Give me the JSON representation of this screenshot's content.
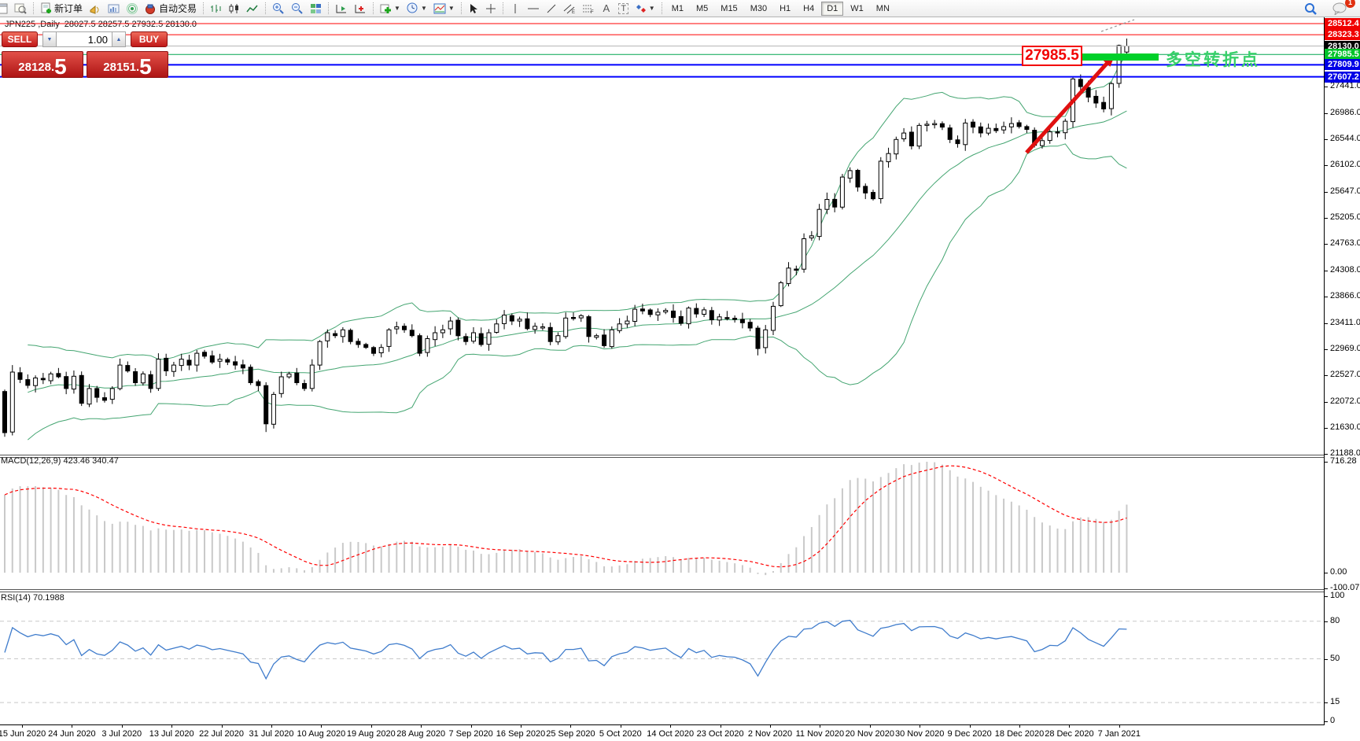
{
  "toolbar": {
    "new_order": "新订单",
    "auto_trading": "自动交易",
    "timeframes": [
      "M1",
      "M5",
      "M15",
      "M30",
      "H1",
      "H4",
      "D1",
      "W1",
      "MN"
    ],
    "active_timeframe": "D1",
    "badge": "1"
  },
  "chart": {
    "title": "JPN225 ,Daily  28027.5 28257.5 27932.5 28130.0",
    "symbol": "JPN225",
    "period": "Daily"
  },
  "trade_panel": {
    "sell_label": "SELL",
    "buy_label": "BUY",
    "volume": "1.00",
    "bid_main": "28128.",
    "bid_big": "5",
    "ask_main": "28151.",
    "ask_big": "5"
  },
  "annotations": {
    "level_label": "27985.5",
    "note": "多空转折点"
  },
  "indicators": {
    "macd_label": "MACD(12,26,9) 423.46 340.47",
    "rsi_label": "RSI(14) 70.1988",
    "macd_scale": [
      "716.28",
      "0.00",
      "-100.07"
    ],
    "rsi_scale": [
      "100",
      "80",
      "50",
      "15",
      "0"
    ]
  },
  "chart_data": {
    "type": "candlestick-ohlc",
    "symbol": "JPN225",
    "timeframe": "Daily",
    "open_first": 22250,
    "closes": [
      21550,
      22580,
      22455,
      22355,
      22480,
      22450,
      22550,
      22500,
      22300,
      22510,
      22050,
      22300,
      22150,
      22100,
      22300,
      22700,
      22600,
      22400,
      22550,
      22300,
      22800,
      22600,
      22700,
      22800,
      22700,
      22900,
      22850,
      22750,
      22800,
      22750,
      22700,
      22650,
      22400,
      22350,
      21700,
      22200,
      22500,
      22550,
      22400,
      22300,
      22700,
      23100,
      23250,
      23200,
      23300,
      23100,
      23050,
      23000,
      22900,
      23000,
      23300,
      23350,
      23300,
      23200,
      22900,
      23150,
      23250,
      23300,
      23450,
      23200,
      23100,
      23250,
      23050,
      23250,
      23400,
      23550,
      23450,
      23480,
      23320,
      23360,
      23350,
      23100,
      23200,
      23500,
      23500,
      23540,
      23185,
      23200,
      23030,
      23300,
      23400,
      23450,
      23650,
      23620,
      23560,
      23600,
      23630,
      23510,
      23410,
      23670,
      23570,
      23640,
      23470,
      23520,
      23490,
      23480,
      23420,
      23330,
      22980,
      23300,
      23700,
      24100,
      24350,
      24330,
      24850,
      24900,
      25350,
      25520,
      25390,
      25900,
      26010,
      25730,
      25630,
      25530,
      26170,
      26300,
      26540,
      26650,
      26430,
      26780,
      26800,
      26810,
      26750,
      26540,
      26470,
      26820,
      26750,
      26650,
      26730,
      26690,
      26760,
      26810,
      26760,
      26710,
      26440,
      26520,
      26670,
      26660,
      26850,
      27570,
      27440,
      27260,
      27160,
      27060,
      27490,
      28140,
      28130
    ],
    "wick_overrides": {
      "0": {
        "low": 21480
      },
      "1": {
        "high": 22700
      },
      "34": {
        "low": 21560
      },
      "139": {
        "high": 27600
      },
      "145": {
        "high": 28155,
        "low": 27420
      },
      "146": {
        "open": 28027.5,
        "high": 28257.5,
        "low": 27932.5,
        "close": 28130.0
      }
    },
    "last_candle": {
      "open": 28027.5,
      "high": 28257.5,
      "low": 27932.5,
      "close": 28130.0
    },
    "current_price": 28130.0,
    "levels": [
      {
        "label": "28512.4",
        "price": 28512.4,
        "line_color": "#ff0000",
        "line_width": 1,
        "tag_bg": "#f00000"
      },
      {
        "label": "28323.3",
        "price": 28323.3,
        "line_color": "#ff0000",
        "line_width": 1,
        "tag_bg": "#f00000"
      },
      {
        "label": "28130.0",
        "price": 28130.0,
        "line_color": "#b6b6b6",
        "line_width": 1,
        "tag_bg": "#000000"
      },
      {
        "label": "27985.5",
        "price": 27985.5,
        "line_color": "#00a650",
        "line_width": 1,
        "tag_bg": "#00c32a"
      },
      {
        "label": "27809.9",
        "price": 27809.9,
        "line_color": "#0000ff",
        "line_width": 2,
        "tag_bg": "#0000e6"
      },
      {
        "label": "27607.2",
        "price": 27607.2,
        "line_color": "#0000ff",
        "line_width": 2,
        "tag_bg": "#0000e6"
      }
    ],
    "y_ticks": [
      "27441.0",
      "26986.0",
      "26544.0",
      "26102.0",
      "25647.0",
      "25205.0",
      "24763.0",
      "24308.0",
      "23866.0",
      "23411.0",
      "22969.0",
      "22527.0",
      "22072.0",
      "21630.0",
      "21188.0"
    ],
    "time_labels": [
      "15 Jun 2020",
      "24 Jun 2020",
      "3 Jul 2020",
      "13 Jul 2020",
      "22 Jul 2020",
      "31 Jul 2020",
      "10 Aug 2020",
      "19 Aug 2020",
      "28 Aug 2020",
      "7 Sep 2020",
      "16 Sep 2020",
      "25 Sep 2020",
      "5 Oct 2020",
      "14 Oct 2020",
      "23 Oct 2020",
      "2 Nov 2020",
      "11 Nov 2020",
      "20 Nov 2020",
      "30 Nov 2020",
      "9 Dec 2020",
      "18 Dec 2020",
      "28 Dec 2020",
      "7 Jan 2021"
    ],
    "indicators": {
      "bollinger": {
        "period": 20,
        "deviation": 2,
        "color": "#44a571"
      },
      "macd": {
        "fast": 12,
        "slow": 26,
        "signal": 9,
        "current_macd": 423.46,
        "current_signal": 340.47,
        "histogram_color": "#c9c9c9",
        "signal_color": "#ff0000"
      },
      "rsi": {
        "period": 14,
        "current": 70.1988,
        "color": "#3f7ccc",
        "levels": [
          80,
          50,
          15
        ]
      }
    },
    "trend_arrow": {
      "color": "#e01010",
      "from_price": 26320,
      "to_price": 28050
    },
    "highlight_bar_color": "#00d02a"
  }
}
